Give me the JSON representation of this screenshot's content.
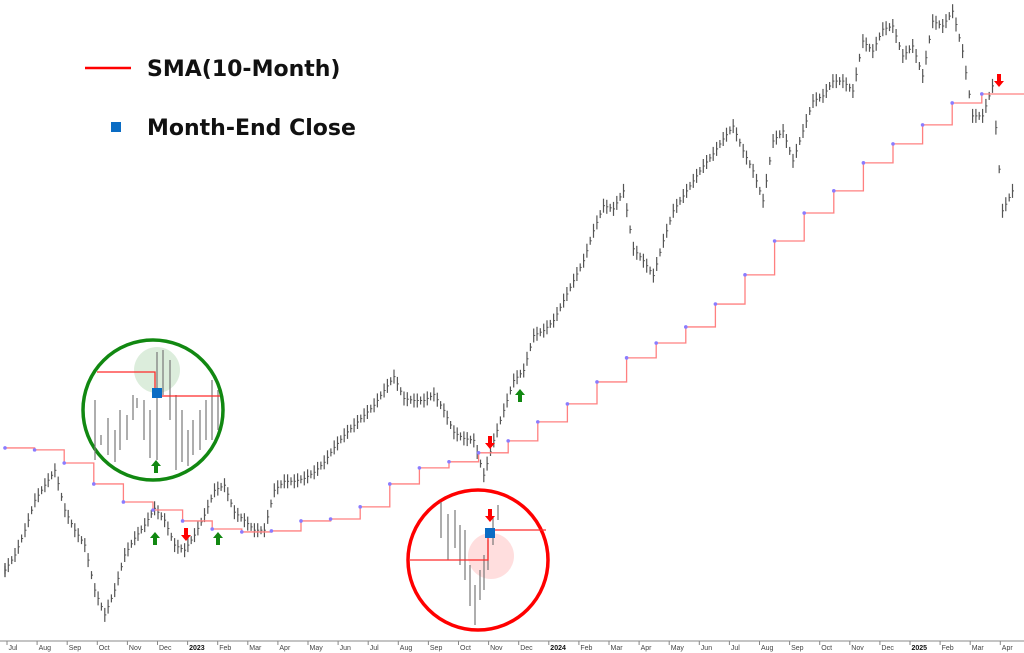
{
  "chart_data": {
    "type": "line",
    "title": "",
    "xlabel": "",
    "ylabel": "",
    "grid": false,
    "legend_placement": "top-left",
    "legend": [
      {
        "label": "SMA(10-Month)",
        "color": "#ff0000",
        "marker": "line"
      },
      {
        "label": "Month-End Close",
        "color": "#0a6cc4",
        "marker": "square"
      }
    ],
    "x_ticks": [
      "Jul",
      "Aug",
      "Sep",
      "Oct",
      "Nov",
      "Dec",
      "2023",
      "Feb",
      "Mar",
      "Apr",
      "May",
      "Jun",
      "Jul",
      "Aug",
      "Sep",
      "Oct",
      "Nov",
      "Dec",
      "2024",
      "Feb",
      "Mar",
      "Apr",
      "May",
      "Jun",
      "Jul",
      "Aug",
      "Sep",
      "Oct",
      "Nov",
      "Dec",
      "2025",
      "Feb",
      "Mar",
      "Apr"
    ],
    "year_ticks": [
      "2023",
      "2024",
      "2025"
    ],
    "ylim": [
      3536,
      6165
    ],
    "price": {
      "name": "Price",
      "color": "#555555",
      "start_month": 0,
      "step_months": 0.337,
      "values": [
        3823,
        3885,
        3987,
        4110,
        4172,
        4233,
        4069,
        3987,
        3926,
        3741,
        3639,
        3741,
        3885,
        3954,
        4008,
        4077,
        4028,
        3926,
        3905,
        3967,
        4049,
        4151,
        4172,
        4061,
        4028,
        3987,
        3987,
        4151,
        4188,
        4188,
        4200,
        4225,
        4266,
        4327,
        4377,
        4418,
        4459,
        4500,
        4561,
        4618,
        4528,
        4520,
        4520,
        4545,
        4479,
        4389,
        4364,
        4356,
        4213,
        4356,
        4479,
        4602,
        4643,
        4787,
        4807,
        4848,
        4930,
        5012,
        5094,
        5217,
        5320,
        5307,
        5381,
        5143,
        5094,
        5033,
        5176,
        5299,
        5360,
        5422,
        5483,
        5533,
        5594,
        5647,
        5545,
        5463,
        5340,
        5586,
        5627,
        5504,
        5627,
        5750,
        5771,
        5832,
        5832,
        5791,
        5996,
        5955,
        6045,
        6058,
        5935,
        5976,
        5853,
        6078,
        6058,
        6119,
        5955,
        5689,
        5689,
        5812,
        5299,
        5381
      ]
    },
    "sma": {
      "name": "SMA(10-Month)",
      "color": "#ff8080",
      "point_color": "#8a7cff",
      "months": [
        "Jun 2022",
        "Jul 2022",
        "Aug 2022",
        "Sep 2022",
        "Oct 2022",
        "Nov 2022",
        "Dec 2022",
        "Jan 2023",
        "Feb 2023",
        "Mar 2023",
        "Apr 2023",
        "May 2023",
        "Jun 2023",
        "Jul 2023",
        "Aug 2023",
        "Sep 2023",
        "Oct 2023",
        "Nov 2023",
        "Dec 2023",
        "Jan 2024",
        "Feb 2024",
        "Mar 2024",
        "Apr 2024",
        "May 2024",
        "Jun 2024",
        "Jul 2024",
        "Aug 2024",
        "Sep 2024",
        "Oct 2024",
        "Nov 2024",
        "Dec 2024",
        "Jan 2025",
        "Feb 2025",
        "Mar 2025"
      ],
      "values": [
        4325,
        4317,
        4263,
        4177,
        4103,
        4070,
        4025,
        3992,
        3980,
        3984,
        4025,
        4033,
        4083,
        4177,
        4243,
        4268,
        4305,
        4354,
        4432,
        4506,
        4596,
        4695,
        4756,
        4822,
        4916,
        5036,
        5175,
        5290,
        5381,
        5496,
        5574,
        5652,
        5742,
        5779
      ]
    },
    "signals": [
      {
        "type": "buy",
        "month_end": "Nov 2022",
        "color": "#118811"
      },
      {
        "type": "sell",
        "month_end": "Dec 2022",
        "color": "#ff0000"
      },
      {
        "type": "buy",
        "month_end": "Jan 2023",
        "color": "#118811"
      },
      {
        "type": "sell",
        "month_end": "Oct 2023",
        "color": "#ff0000"
      },
      {
        "type": "buy",
        "month_end": "Nov 2023",
        "color": "#118811"
      },
      {
        "type": "sell",
        "month_end": "Mar 2025",
        "color": "#ff0000"
      }
    ],
    "callouts": [
      {
        "signal": "buy",
        "month_end": "Nov 2022",
        "ring_color": "#118811"
      },
      {
        "signal": "sell",
        "month_end": "Oct 2023",
        "ring_color": "#ff0000"
      }
    ]
  }
}
